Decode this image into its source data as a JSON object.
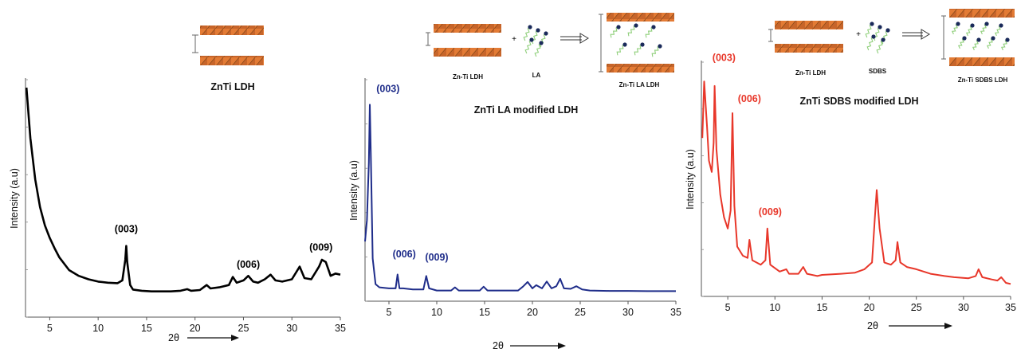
{
  "colors": {
    "panel1": "#000000",
    "panel2": "#1f2d8a",
    "panel3": "#e8372a",
    "layer_orange": "#e37b35",
    "layer_dark": "#8a4a1a",
    "molecule_head": "#1a2a5a",
    "molecule_tail": "#8fcf7a"
  },
  "schematics": {
    "s1": {
      "label": "ZnTi LDH"
    },
    "s2": {
      "left_label": "Zn-Ti LDH",
      "mid_label": "LA",
      "right_label": "Zn-Ti LA LDH",
      "plus": "+"
    },
    "s3": {
      "left_label": "Zn-Ti LDH",
      "mid_label": "SDBS",
      "right_label": "Zn-Ti SDBS LDH",
      "plus": "+"
    }
  },
  "chart_data": [
    {
      "type": "line",
      "title": "ZnTi LDH",
      "xlabel": "2θ",
      "ylabel": "Intensity (a.u)",
      "xlim": [
        2.5,
        35
      ],
      "xticks": [
        5,
        10,
        15,
        20,
        25,
        30,
        35
      ],
      "ylim": [
        0,
        1
      ],
      "color": "#000000",
      "x": [
        2.6,
        3.0,
        3.5,
        4.0,
        4.5,
        5.0,
        5.5,
        6.0,
        7.0,
        8.0,
        9.0,
        10.0,
        11.0,
        12.0,
        12.5,
        12.8,
        12.9,
        13.0,
        13.3,
        13.6,
        14.5,
        15.5,
        16.5,
        17.5,
        18.5,
        19.2,
        19.6,
        20.5,
        21.2,
        21.6,
        22.5,
        23.5,
        23.9,
        24.3,
        25.0,
        25.5,
        26.0,
        26.5,
        27.2,
        27.8,
        28.3,
        29.0,
        30.0,
        30.8,
        31.3,
        32.0,
        32.8,
        33.1,
        33.5,
        34.0,
        34.5,
        35.0
      ],
      "y": [
        1.0,
        0.78,
        0.6,
        0.48,
        0.4,
        0.345,
        0.3,
        0.26,
        0.205,
        0.18,
        0.165,
        0.155,
        0.15,
        0.148,
        0.16,
        0.25,
        0.31,
        0.24,
        0.14,
        0.12,
        0.115,
        0.112,
        0.112,
        0.112,
        0.115,
        0.122,
        0.115,
        0.118,
        0.14,
        0.125,
        0.13,
        0.14,
        0.175,
        0.15,
        0.16,
        0.18,
        0.155,
        0.15,
        0.165,
        0.185,
        0.16,
        0.155,
        0.165,
        0.22,
        0.17,
        0.165,
        0.22,
        0.25,
        0.24,
        0.18,
        0.19,
        0.185
      ],
      "annotations": [
        {
          "text": "(003)",
          "x": 12.9,
          "y": 0.37
        },
        {
          "text": "(006)",
          "x": 25.5,
          "y": 0.215
        },
        {
          "text": "(009)",
          "x": 33.0,
          "y": 0.29
        }
      ]
    },
    {
      "type": "line",
      "title": "ZnTi  LA modified LDH",
      "xlabel": "2θ",
      "ylabel": "Intensity (a.u)",
      "xlim": [
        2.5,
        35
      ],
      "xticks": [
        5,
        10,
        15,
        20,
        25,
        30,
        35
      ],
      "ylim": [
        0,
        1
      ],
      "color": "#1f2d8a",
      "x": [
        2.5,
        2.7,
        2.9,
        3.0,
        3.1,
        3.3,
        3.6,
        4.0,
        5.0,
        5.7,
        5.9,
        6.1,
        6.5,
        7.5,
        8.6,
        8.9,
        9.2,
        10.0,
        11.5,
        11.9,
        12.3,
        14.5,
        14.9,
        15.3,
        18.5,
        19.0,
        19.5,
        20.0,
        20.4,
        21.0,
        21.5,
        22.0,
        22.5,
        22.9,
        23.3,
        24.0,
        24.6,
        25.2,
        26.0,
        28.0,
        30.0,
        32.0,
        35.0
      ],
      "y": [
        0.28,
        0.38,
        0.65,
        0.92,
        0.7,
        0.2,
        0.08,
        0.065,
        0.06,
        0.06,
        0.125,
        0.06,
        0.06,
        0.055,
        0.055,
        0.118,
        0.06,
        0.05,
        0.05,
        0.065,
        0.05,
        0.05,
        0.068,
        0.05,
        0.05,
        0.068,
        0.09,
        0.06,
        0.075,
        0.06,
        0.092,
        0.06,
        0.07,
        0.105,
        0.06,
        0.058,
        0.07,
        0.055,
        0.05,
        0.048,
        0.048,
        0.047,
        0.047
      ],
      "annotations": [
        {
          "text": "(003)",
          "x": 4.9,
          "y": 0.98
        },
        {
          "text": "(006)",
          "x": 6.6,
          "y": 0.205
        },
        {
          "text": "(009)",
          "x": 10.0,
          "y": 0.19
        }
      ]
    },
    {
      "type": "line",
      "title": "ZnTi  SDBS modified LDH",
      "xlabel": "2θ",
      "ylabel": "Intensity (a.u)",
      "xlim": [
        2.2,
        35
      ],
      "xticks": [
        5,
        10,
        15,
        20,
        25,
        30,
        35
      ],
      "ylim": [
        0,
        1
      ],
      "color": "#e8372a",
      "x": [
        2.3,
        2.5,
        2.8,
        3.0,
        3.3,
        3.5,
        3.6,
        3.8,
        4.2,
        4.6,
        5.0,
        5.3,
        5.5,
        5.7,
        6.0,
        6.6,
        7.1,
        7.3,
        7.6,
        8.5,
        9.0,
        9.2,
        9.5,
        10.5,
        11.2,
        11.5,
        12.5,
        13.0,
        13.4,
        14.5,
        15.0,
        17.0,
        18.5,
        19.5,
        20.3,
        20.6,
        20.8,
        21.1,
        21.6,
        22.3,
        22.8,
        23.0,
        23.3,
        24.0,
        25.0,
        26.5,
        28.0,
        29.0,
        30.5,
        31.3,
        31.6,
        32.0,
        33.0,
        33.6,
        34.0,
        34.5,
        35.0
      ],
      "y": [
        0.7,
        0.95,
        0.75,
        0.6,
        0.55,
        0.68,
        0.93,
        0.65,
        0.45,
        0.35,
        0.3,
        0.38,
        0.81,
        0.4,
        0.22,
        0.18,
        0.17,
        0.25,
        0.16,
        0.14,
        0.16,
        0.3,
        0.14,
        0.11,
        0.12,
        0.1,
        0.1,
        0.13,
        0.1,
        0.09,
        0.095,
        0.1,
        0.105,
        0.12,
        0.15,
        0.35,
        0.47,
        0.3,
        0.15,
        0.14,
        0.16,
        0.24,
        0.15,
        0.13,
        0.12,
        0.1,
        0.09,
        0.085,
        0.08,
        0.09,
        0.12,
        0.085,
        0.075,
        0.07,
        0.085,
        0.06,
        0.055
      ],
      "annotations": [
        {
          "text": "(003)",
          "x": 4.6,
          "y": 1.04
        },
        {
          "text": "(006)",
          "x": 7.3,
          "y": 0.86
        },
        {
          "text": "(009)",
          "x": 9.5,
          "y": 0.36
        }
      ]
    }
  ]
}
